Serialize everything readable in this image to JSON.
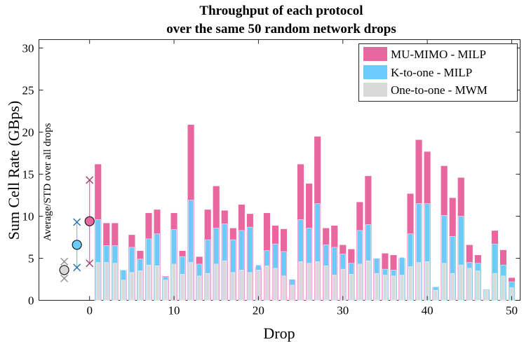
{
  "colors": {
    "mu_mimo": "#E8679F",
    "k_to_one": "#6CCBFB",
    "one_to_one": "#D9D9D9",
    "mu_mimo_edge": "#A03D73",
    "k_to_one_edge": "#2A6FA8",
    "one_to_one_edge": "#8F8F8F",
    "axis": "#262626",
    "grid": "#E6E6E6"
  },
  "chart_data": {
    "type": "bar",
    "title": [
      "Throughput of each protocol",
      "over the same 50 random network drops"
    ],
    "xlabel": "Drop",
    "ylabel": "Sum Cell Rate (GBps)",
    "xlim": [
      -6,
      51
    ],
    "ylim": [
      0,
      31
    ],
    "xticks": [
      0,
      10,
      20,
      30,
      40,
      50
    ],
    "yticks": [
      0,
      5,
      10,
      15,
      20,
      25,
      30
    ],
    "xtick_labels": [
      "0",
      "10",
      "20",
      "30",
      "40",
      "50"
    ],
    "ytick_labels": [
      "0",
      "5",
      "10",
      "15",
      "20",
      "25",
      "30"
    ],
    "grid": false,
    "legend_position": "top-right",
    "annotation": "Average/STD over all drops",
    "categories": [
      1,
      2,
      3,
      4,
      5,
      6,
      7,
      8,
      9,
      10,
      11,
      12,
      13,
      14,
      15,
      16,
      17,
      18,
      19,
      20,
      21,
      22,
      23,
      24,
      25,
      26,
      27,
      28,
      29,
      30,
      31,
      32,
      33,
      34,
      35,
      36,
      37,
      38,
      39,
      40,
      41,
      42,
      43,
      44,
      45,
      46,
      47,
      48,
      49,
      50
    ],
    "series": [
      {
        "name": "MU-MIMO - MILP",
        "color_key": "mu_mimo",
        "values": [
          16.2,
          9.2,
          9.2,
          3.6,
          7.8,
          5.9,
          10.4,
          10.8,
          2.9,
          10.4,
          5.9,
          20.9,
          5.2,
          10.8,
          13.6,
          10.7,
          8.6,
          11.4,
          10.3,
          4.0,
          10.4,
          8.9,
          8.5,
          2.5,
          16.2,
          13.9,
          19.5,
          8.6,
          8.9,
          6.6,
          6.1,
          11.7,
          14.8,
          5.0,
          5.6,
          5.4,
          5.0,
          12.7,
          19.1,
          17.7,
          1.6,
          16.0,
          12.2,
          14.6,
          6.6,
          5.4,
          1.3,
          8.3,
          6.0,
          2.7
        ]
      },
      {
        "name": "K-to-one - MILP",
        "color_key": "k_to_one",
        "values": [
          9.6,
          6.5,
          6.5,
          3.6,
          6.3,
          4.9,
          7.3,
          7.9,
          2.8,
          8.4,
          5.2,
          11.9,
          4.3,
          7.2,
          8.6,
          9.1,
          7.2,
          8.3,
          8.7,
          4.2,
          5.9,
          6.7,
          5.8,
          2.5,
          9.6,
          8.6,
          11.5,
          6.6,
          6.3,
          5.5,
          4.4,
          8.3,
          9.0,
          5.0,
          3.7,
          3.6,
          5.1,
          7.9,
          11.5,
          11.5,
          1.6,
          10.1,
          7.6,
          10.0,
          4.5,
          4.4,
          1.3,
          6.7,
          4.2,
          2.2
        ]
      },
      {
        "name": "One-to-one - MWM",
        "color_key": "one_to_one",
        "values": [
          4.5,
          4.5,
          4.4,
          2.4,
          3.3,
          3.5,
          4.2,
          4.1,
          2.4,
          4.3,
          3.1,
          4.5,
          2.9,
          3.2,
          4.3,
          4.7,
          3.3,
          3.6,
          3.3,
          3.6,
          4.1,
          3.8,
          2.9,
          1.8,
          4.6,
          4.4,
          4.6,
          4.1,
          3.0,
          3.7,
          3.1,
          4.3,
          4.7,
          3.2,
          3.0,
          2.9,
          3.0,
          4.0,
          4.5,
          4.6,
          1.2,
          4.4,
          3.2,
          4.2,
          3.8,
          3.5,
          1.2,
          3.2,
          2.9,
          1.5
        ]
      }
    ],
    "summary": [
      {
        "name": "MU-MIMO - MILP",
        "color_key": "mu_mimo",
        "x": 0,
        "mean": 9.4,
        "low": 4.4,
        "high": 14.3
      },
      {
        "name": "K-to-one - MILP",
        "color_key": "k_to_one",
        "x": -1.5,
        "mean": 6.6,
        "low": 3.9,
        "high": 9.3
      },
      {
        "name": "One-to-one - MWM",
        "color_key": "one_to_one",
        "x": -3.0,
        "mean": 3.6,
        "low": 2.6,
        "high": 4.6
      }
    ]
  }
}
